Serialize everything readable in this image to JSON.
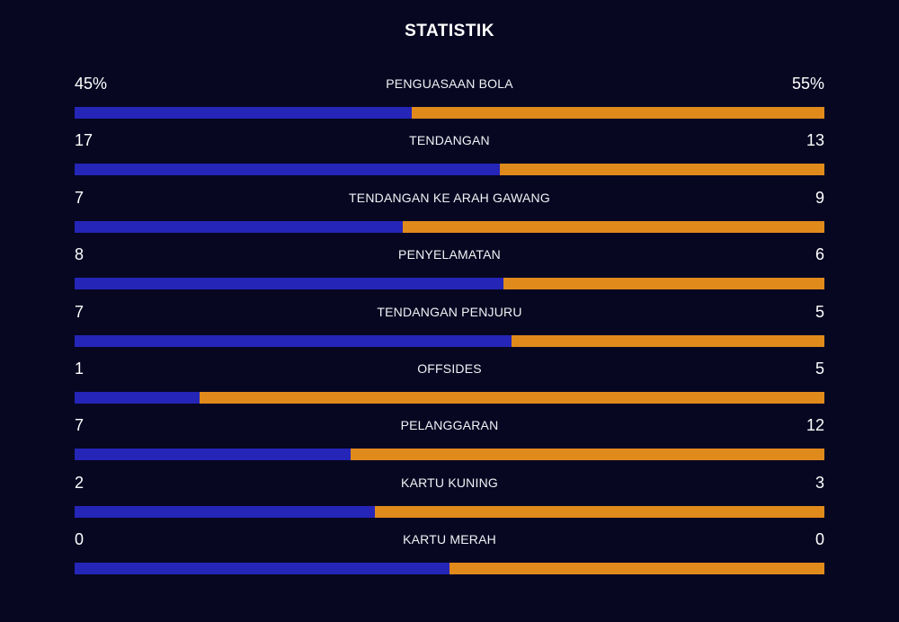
{
  "title": "STATISTIK",
  "colors": {
    "background": "#070722",
    "team_left": "#2525b8",
    "team_right": "#e08a1c",
    "text": "#ffffff"
  },
  "stats": [
    {
      "label": "PENGUASAAN BOLA",
      "left": "45%",
      "right": "55%",
      "left_share": 0.45
    },
    {
      "label": "TENDANGAN",
      "left": "17",
      "right": "13",
      "left_share": 0.5667
    },
    {
      "label": "TENDANGAN KE ARAH GAWANG",
      "left": "7",
      "right": "9",
      "left_share": 0.4375
    },
    {
      "label": "PENYELAMATAN",
      "left": "8",
      "right": "6",
      "left_share": 0.5714
    },
    {
      "label": "TENDANGAN PENJURU",
      "left": "7",
      "right": "5",
      "left_share": 0.5833
    },
    {
      "label": "OFFSIDES",
      "left": "1",
      "right": "5",
      "left_share": 0.1667
    },
    {
      "label": "PELANGGARAN",
      "left": "7",
      "right": "12",
      "left_share": 0.3684
    },
    {
      "label": "KARTU KUNING",
      "left": "2",
      "right": "3",
      "left_share": 0.4
    },
    {
      "label": "KARTU MERAH",
      "left": "0",
      "right": "0",
      "left_share": 0.5
    }
  ]
}
